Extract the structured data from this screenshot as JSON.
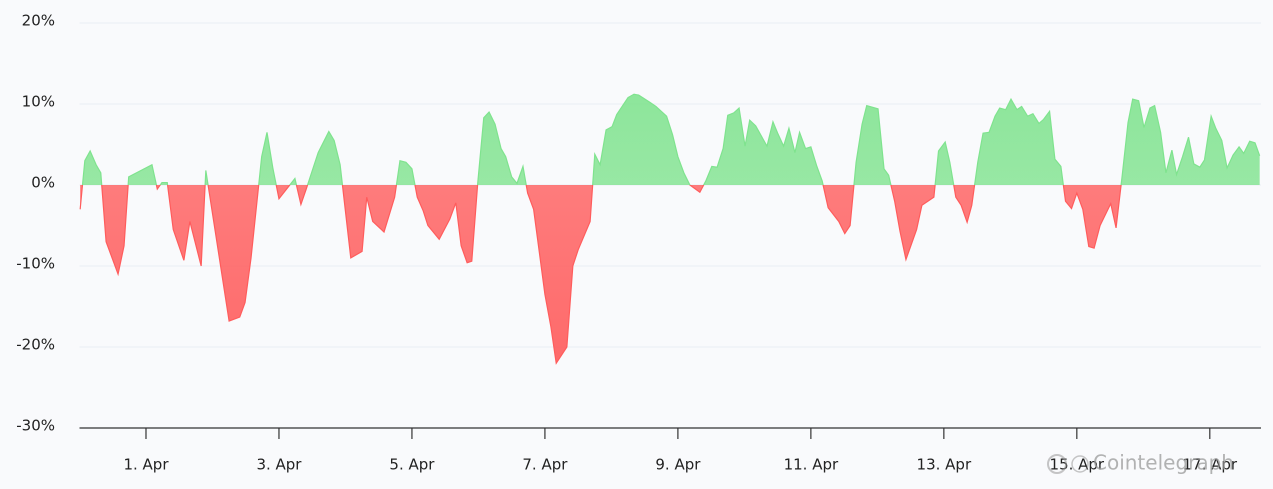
{
  "chart_data": {
    "type": "area",
    "x": [
      0.01,
      0.08,
      0.16,
      0.25,
      0.32,
      0.4,
      0.58,
      0.67,
      0.74,
      1.09,
      1.17,
      1.24,
      1.32,
      1.41,
      1.57,
      1.66,
      1.83,
      1.9,
      2.25,
      2.41,
      2.49,
      2.58,
      2.74,
      2.82,
      2.91,
      3.0,
      3.24,
      3.33,
      3.41,
      3.59,
      3.75,
      3.83,
      3.92,
      4.08,
      4.25,
      4.32,
      4.41,
      4.58,
      4.74,
      4.82,
      4.91,
      5.0,
      5.08,
      5.17,
      5.24,
      5.41,
      5.57,
      5.66,
      5.74,
      5.83,
      5.9,
      5.99,
      6.08,
      6.16,
      6.25,
      6.34,
      6.41,
      6.5,
      6.58,
      6.67,
      6.74,
      6.83,
      7.0,
      7.09,
      7.17,
      7.33,
      7.42,
      7.5,
      7.68,
      7.75,
      7.83,
      7.92,
      8.01,
      8.08,
      8.25,
      8.34,
      8.41,
      8.58,
      8.67,
      8.83,
      8.92,
      9.0,
      9.09,
      9.18,
      9.33,
      9.42,
      9.51,
      9.59,
      9.68,
      9.75,
      9.84,
      9.92,
      10.01,
      10.08,
      10.17,
      10.34,
      10.43,
      10.5,
      10.59,
      10.67,
      10.76,
      10.83,
      10.92,
      11.0,
      11.09,
      11.17,
      11.26,
      11.42,
      11.51,
      11.59,
      11.68,
      11.77,
      11.84,
      12.01,
      12.1,
      12.17,
      12.26,
      12.34,
      12.43,
      12.59,
      12.67,
      12.85,
      12.92,
      13.02,
      13.09,
      13.18,
      13.26,
      13.35,
      13.42,
      13.51,
      13.59,
      13.68,
      13.77,
      13.84,
      13.93,
      14.01,
      14.1,
      14.17,
      14.26,
      14.34,
      14.43,
      14.5,
      14.59,
      14.67,
      14.76,
      14.83,
      14.92,
      15.0,
      15.09,
      15.18,
      15.26,
      15.35,
      15.51,
      15.59,
      15.68,
      15.77,
      15.84,
      15.93,
      16.01,
      16.1,
      16.17,
      16.26,
      16.34,
      16.43,
      16.5,
      16.59,
      16.68,
      16.76,
      16.85,
      16.92,
      17.02,
      17.09,
      17.18,
      17.26,
      17.35,
      17.44,
      17.51,
      17.6,
      17.68,
      17.75
    ],
    "values": [
      -3,
      3,
      4.2,
      2.5,
      1.5,
      -7,
      -11,
      -7.5,
      1,
      2.5,
      -0.5,
      0.3,
      0.3,
      -5.5,
      -9.3,
      -4.5,
      -10,
      1.8,
      -16.8,
      -16.3,
      -14.5,
      -9,
      3.5,
      6.5,
      2,
      -1.7,
      0.8,
      -2.4,
      -0.5,
      4,
      6.6,
      5.5,
      2.5,
      -9,
      -8.2,
      -1.5,
      -4.5,
      -5.8,
      -1.5,
      3,
      2.8,
      2,
      -1.5,
      -3.2,
      -5,
      -6.7,
      -4.2,
      -2.2,
      -7.5,
      -9.6,
      -9.4,
      0.3,
      8.3,
      9,
      7.5,
      4.5,
      3.5,
      1,
      0.2,
      2.3,
      -1,
      -3,
      -13.5,
      -17.5,
      -22,
      -20,
      -10,
      -8,
      -4.5,
      3.8,
      2.5,
      6.8,
      7.2,
      8.7,
      10.8,
      11.2,
      11.1,
      10.2,
      9.7,
      8.5,
      6.2,
      3.5,
      1.5,
      0,
      -0.9,
      0.5,
      2.3,
      2.2,
      4.5,
      8.6,
      8.9,
      9.5,
      4.8,
      8,
      7.3,
      4.8,
      7.8,
      6.4,
      4.8,
      7,
      4,
      6.5,
      4.5,
      4.7,
      2.3,
      0.5,
      -2.8,
      -4.5,
      -6,
      -5,
      2.8,
      7.5,
      9.8,
      9.4,
      2,
      1.2,
      -2,
      -5.7,
      -9.2,
      -5.5,
      -2.5,
      -1.5,
      4.2,
      5.3,
      2.8,
      -1.5,
      -2.5,
      -4.6,
      -2.5,
      2.8,
      6.4,
      6.5,
      8.5,
      9.5,
      9.3,
      10.6,
      9.3,
      9.7,
      8.5,
      8.8,
      7.6,
      8.1,
      9.1,
      3.2,
      2.3,
      -2,
      -2.9,
      -1,
      -3,
      -7.6,
      -7.8,
      -5,
      -2.3,
      -5.3,
      1,
      7.7,
      10.6,
      10.4,
      7.1,
      9.5,
      9.8,
      6.5,
      1.5,
      4.3,
      1.3,
      3.5,
      5.9,
      2.6,
      2.2,
      3.1,
      8.5,
      7,
      5.5,
      2.1,
      3.7,
      4.7,
      3.9,
      5.4,
      5.2,
      3.6
    ],
    "positive_color": "#7fe38e",
    "negative_color": "#ff5c5c",
    "xlim": [
      0,
      17.77
    ],
    "xticks": [
      {
        "value": 1,
        "label": "1. Apr"
      },
      {
        "value": 3,
        "label": "3. Apr"
      },
      {
        "value": 5,
        "label": "5. Apr"
      },
      {
        "value": 7,
        "label": "7. Apr"
      },
      {
        "value": 9,
        "label": "9. Apr"
      },
      {
        "value": 11,
        "label": "11. Apr"
      },
      {
        "value": 13,
        "label": "13. Apr"
      },
      {
        "value": 15,
        "label": "15. Apr"
      },
      {
        "value": 17,
        "label": "17. Apr"
      }
    ],
    "ylim": [
      -30,
      20
    ],
    "yticks": [
      {
        "value": -30,
        "label": "-30%"
      },
      {
        "value": -20,
        "label": "-20%"
      },
      {
        "value": -10,
        "label": "-10%"
      },
      {
        "value": 0,
        "label": "0%"
      },
      {
        "value": 10,
        "label": "10%"
      },
      {
        "value": 20,
        "label": "20%"
      }
    ],
    "grid": true,
    "watermark": "Cointelegraph"
  }
}
